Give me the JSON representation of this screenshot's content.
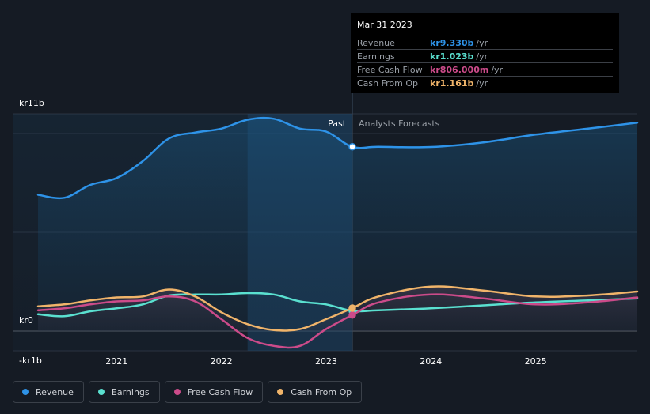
{
  "chart_data": {
    "type": "line",
    "y_unit": "kr billions",
    "ylim": [
      -1,
      11
    ],
    "xlim": [
      2020.25,
      2025.97
    ],
    "y_tick_labels": [
      {
        "value": 11,
        "label": "kr11b"
      },
      {
        "value": 0,
        "label": "kr0"
      },
      {
        "value": -1,
        "label": "-kr1b"
      }
    ],
    "x_ticks": [
      {
        "value": 2021,
        "label": "2021"
      },
      {
        "value": 2022,
        "label": "2022"
      },
      {
        "value": 2023,
        "label": "2023"
      },
      {
        "value": 2024,
        "label": "2024"
      },
      {
        "value": 2025,
        "label": "2025"
      }
    ],
    "past_label": "Past",
    "forecast_label": "Analysts Forecasts",
    "past_end": 2023.25,
    "highlight_start": 2022.25,
    "series": [
      {
        "name": "Revenue",
        "color": "#2e93e8",
        "fill": true,
        "points": [
          [
            2020.25,
            6.9
          ],
          [
            2020.5,
            6.75
          ],
          [
            2020.75,
            7.4
          ],
          [
            2021.0,
            7.75
          ],
          [
            2021.25,
            8.6
          ],
          [
            2021.5,
            9.75
          ],
          [
            2021.75,
            10.05
          ],
          [
            2022.0,
            10.25
          ],
          [
            2022.25,
            10.7
          ],
          [
            2022.5,
            10.75
          ],
          [
            2022.75,
            10.25
          ],
          [
            2023.0,
            10.1
          ],
          [
            2023.25,
            9.33
          ],
          [
            2023.5,
            9.33
          ],
          [
            2024.0,
            9.32
          ],
          [
            2024.5,
            9.55
          ],
          [
            2025.0,
            9.95
          ],
          [
            2025.5,
            10.25
          ],
          [
            2025.97,
            10.55
          ]
        ]
      },
      {
        "name": "Earnings",
        "color": "#5ae0d0",
        "fill": false,
        "points": [
          [
            2020.25,
            0.85
          ],
          [
            2020.5,
            0.75
          ],
          [
            2020.75,
            1.0
          ],
          [
            2021.0,
            1.15
          ],
          [
            2021.25,
            1.35
          ],
          [
            2021.5,
            1.8
          ],
          [
            2021.75,
            1.85
          ],
          [
            2022.0,
            1.85
          ],
          [
            2022.25,
            1.92
          ],
          [
            2022.5,
            1.85
          ],
          [
            2022.75,
            1.5
          ],
          [
            2023.0,
            1.35
          ],
          [
            2023.25,
            1.02
          ],
          [
            2023.5,
            1.05
          ],
          [
            2024.0,
            1.15
          ],
          [
            2024.5,
            1.3
          ],
          [
            2025.0,
            1.45
          ],
          [
            2025.5,
            1.55
          ],
          [
            2025.97,
            1.65
          ]
        ]
      },
      {
        "name": "Free Cash Flow",
        "color": "#cc4b8a",
        "fill": false,
        "points": [
          [
            2020.25,
            1.05
          ],
          [
            2020.5,
            1.15
          ],
          [
            2020.75,
            1.35
          ],
          [
            2021.0,
            1.5
          ],
          [
            2021.25,
            1.55
          ],
          [
            2021.5,
            1.75
          ],
          [
            2021.75,
            1.5
          ],
          [
            2022.0,
            0.6
          ],
          [
            2022.25,
            -0.35
          ],
          [
            2022.5,
            -0.75
          ],
          [
            2022.75,
            -0.75
          ],
          [
            2023.0,
            0.1
          ],
          [
            2023.25,
            0.81
          ],
          [
            2023.5,
            1.45
          ],
          [
            2024.0,
            1.85
          ],
          [
            2024.5,
            1.65
          ],
          [
            2025.0,
            1.35
          ],
          [
            2025.5,
            1.45
          ],
          [
            2025.97,
            1.7
          ]
        ]
      },
      {
        "name": "Cash From Op",
        "color": "#f0b46a",
        "fill": false,
        "points": [
          [
            2020.25,
            1.25
          ],
          [
            2020.5,
            1.35
          ],
          [
            2020.75,
            1.55
          ],
          [
            2021.0,
            1.7
          ],
          [
            2021.25,
            1.75
          ],
          [
            2021.5,
            2.1
          ],
          [
            2021.75,
            1.75
          ],
          [
            2022.0,
            0.95
          ],
          [
            2022.25,
            0.35
          ],
          [
            2022.5,
            0.05
          ],
          [
            2022.75,
            0.1
          ],
          [
            2023.0,
            0.6
          ],
          [
            2023.25,
            1.16
          ],
          [
            2023.5,
            1.75
          ],
          [
            2024.0,
            2.25
          ],
          [
            2024.5,
            2.05
          ],
          [
            2025.0,
            1.75
          ],
          [
            2025.5,
            1.8
          ],
          [
            2025.97,
            2.0
          ]
        ]
      }
    ]
  },
  "tooltip": {
    "date": "Mar 31 2023",
    "rows": [
      {
        "label": "Revenue",
        "value": "kr9.330b",
        "unit": "/yr",
        "color": "#2e93e8"
      },
      {
        "label": "Earnings",
        "value": "kr1.023b",
        "unit": "/yr",
        "color": "#5ae0d0"
      },
      {
        "label": "Free Cash Flow",
        "value": "kr806.000m",
        "unit": "/yr",
        "color": "#cc4b8a"
      },
      {
        "label": "Cash From Op",
        "value": "kr1.161b",
        "unit": "/yr",
        "color": "#f0b46a"
      }
    ]
  },
  "legend": [
    {
      "label": "Revenue",
      "color": "#2e93e8"
    },
    {
      "label": "Earnings",
      "color": "#5ae0d0"
    },
    {
      "label": "Free Cash Flow",
      "color": "#cc4b8a"
    },
    {
      "label": "Cash From Op",
      "color": "#f0b46a"
    }
  ]
}
